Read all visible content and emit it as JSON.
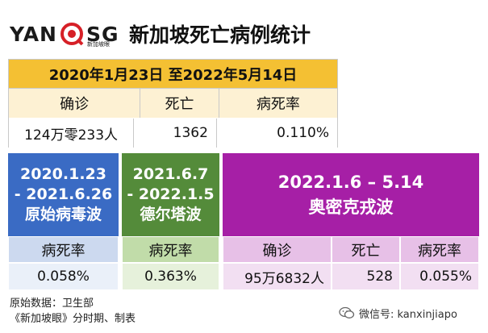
{
  "header": {
    "logo_left": "YAN",
    "logo_right": "SG",
    "logo_sub": "新加坡眼",
    "title": "新加坡死亡病例统计"
  },
  "table1": {
    "period": "2020年1月23日 至2022年5月14日",
    "labels": [
      "确诊",
      "死亡",
      "病死率"
    ],
    "values": [
      "124万零233人",
      "1362",
      "0.110%"
    ]
  },
  "table2": {
    "original": {
      "period_line1": "2020.1.23",
      "period_line2": "- 2021.6.26",
      "name": "原始病毒波",
      "label": "病死率",
      "value": "0.058%"
    },
    "delta": {
      "period_line1": "2021.6.7",
      "period_line2": "- 2022.1.5",
      "name": "德尔塔波",
      "label": "病死率",
      "value": "0.363%"
    },
    "omicron": {
      "period": "2022.1.6 – 5.14",
      "name": "奥密克戎波",
      "labels": [
        "确诊",
        "死亡",
        "病死率"
      ],
      "values": [
        "95万6832人",
        "528",
        "0.055%"
      ]
    }
  },
  "footer": {
    "source": "原始数据：卫生部",
    "credit": "《新加坡眼》分时期、制表",
    "wechat": "微信号: kanxinjiapo"
  },
  "colors": {
    "gold": "#f4c033",
    "blue": "#3a6bc4",
    "green": "#548b3a",
    "purple": "#a61fa6"
  }
}
